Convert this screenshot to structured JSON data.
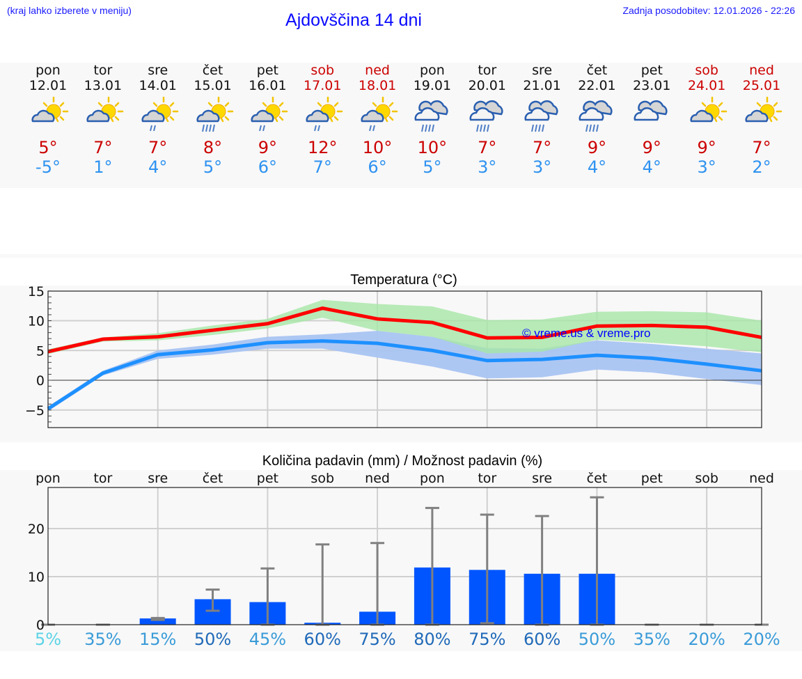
{
  "header": {
    "menu_hint": "(kraj lahko izberete v meniju)",
    "title": "Ajdovščina 14 dni",
    "last_update": "Zadnja posodobitev: 12.01.2026 - 22:26"
  },
  "days": [
    {
      "name": "pon",
      "date": "12.01",
      "weekend": false,
      "icon": "partly-sunny-icon",
      "tmax": "5°",
      "tmin": "-5°"
    },
    {
      "name": "tor",
      "date": "13.01",
      "weekend": false,
      "icon": "partly-sunny-icon",
      "tmax": "7°",
      "tmin": "1°"
    },
    {
      "name": "sre",
      "date": "14.01",
      "weekend": false,
      "icon": "partly-sunny-light-rain-icon",
      "tmax": "7°",
      "tmin": "4°"
    },
    {
      "name": "čet",
      "date": "15.01",
      "weekend": false,
      "icon": "partly-sunny-rain-icon",
      "tmax": "8°",
      "tmin": "5°"
    },
    {
      "name": "pet",
      "date": "16.01",
      "weekend": false,
      "icon": "partly-sunny-light-rain-icon",
      "tmax": "9°",
      "tmin": "6°"
    },
    {
      "name": "sob",
      "date": "17.01",
      "weekend": true,
      "icon": "partly-sunny-light-rain-icon",
      "tmax": "12°",
      "tmin": "7°"
    },
    {
      "name": "ned",
      "date": "18.01",
      "weekend": true,
      "icon": "partly-sunny-light-rain-icon",
      "tmax": "10°",
      "tmin": "6°"
    },
    {
      "name": "pon",
      "date": "19.01",
      "weekend": false,
      "icon": "cloudy-rain-icon",
      "tmax": "10°",
      "tmin": "5°"
    },
    {
      "name": "tor",
      "date": "20.01",
      "weekend": false,
      "icon": "cloudy-rain-icon",
      "tmax": "7°",
      "tmin": "3°"
    },
    {
      "name": "sre",
      "date": "21.01",
      "weekend": false,
      "icon": "cloudy-rain-icon",
      "tmax": "7°",
      "tmin": "3°"
    },
    {
      "name": "čet",
      "date": "22.01",
      "weekend": false,
      "icon": "cloudy-rain-icon",
      "tmax": "9°",
      "tmin": "4°"
    },
    {
      "name": "pet",
      "date": "23.01",
      "weekend": false,
      "icon": "cloudy-icon",
      "tmax": "9°",
      "tmin": "4°"
    },
    {
      "name": "sob",
      "date": "24.01",
      "weekend": true,
      "icon": "partly-sunny-icon",
      "tmax": "9°",
      "tmin": "3°"
    },
    {
      "name": "ned",
      "date": "25.01",
      "weekend": true,
      "icon": "partly-sunny-icon",
      "tmax": "7°",
      "tmin": "2°"
    }
  ],
  "colors": {
    "tmax": "#cc0000",
    "tmin": "#2e92f0",
    "max_line": "#ff0000",
    "min_line": "#1e90ff",
    "max_band": "#a6e6a6",
    "min_band": "#a9c4f2",
    "bar": "#0055ff",
    "errorbar": "#808080",
    "watermark": "#0000ff"
  },
  "chart_data": [
    {
      "type": "line",
      "title": "Temperatura (°C)",
      "xlabel": "",
      "ylabel": "",
      "ylim": [
        -7.8,
        15
      ],
      "yticks": [
        -5,
        0,
        5,
        10,
        15
      ],
      "ytick_labels": [
        "−5",
        "0",
        "5",
        "10",
        "15"
      ],
      "grid": true,
      "watermark": "© vreme.us & vreme.pro",
      "x": [
        "12.01",
        "13.01",
        "14.01",
        "15.01",
        "16.01",
        "17.01",
        "18.01",
        "19.01",
        "20.01",
        "21.01",
        "22.01",
        "23.01",
        "24.01",
        "25.01"
      ],
      "series": [
        {
          "name": "Tmax",
          "values": [
            4.8,
            6.9,
            7.3,
            8.4,
            9.5,
            12.1,
            10.3,
            9.7,
            7.1,
            7.2,
            9.1,
            9.2,
            8.9,
            7.2
          ]
        },
        {
          "name": "Tmin",
          "values": [
            -4.8,
            1.2,
            4.3,
            5.1,
            6.3,
            6.6,
            6.2,
            5.0,
            3.3,
            3.5,
            4.2,
            3.7,
            2.7,
            1.6
          ]
        },
        {
          "name": "Tmax range upper",
          "values": [
            5.2,
            7.2,
            7.9,
            9.2,
            10.3,
            13.5,
            12.8,
            12.4,
            10.1,
            10.2,
            11.5,
            11.6,
            11.4,
            10.0
          ]
        },
        {
          "name": "Tmax range lower",
          "values": [
            4.4,
            6.5,
            6.7,
            7.6,
            8.7,
            10.5,
            8.3,
            7.3,
            4.5,
            4.8,
            6.8,
            6.3,
            5.7,
            4.7
          ]
        },
        {
          "name": "Tmin range upper",
          "values": [
            -4.4,
            1.6,
            5.0,
            6.0,
            7.3,
            7.7,
            8.3,
            7.3,
            5.4,
            5.3,
            6.7,
            6.1,
            5.3,
            4.5
          ]
        },
        {
          "name": "Tmin range lower",
          "values": [
            -5.2,
            0.8,
            3.6,
            4.3,
            5.3,
            5.3,
            3.8,
            2.3,
            0.3,
            0.5,
            1.8,
            1.3,
            0.2,
            -0.8
          ]
        }
      ]
    },
    {
      "type": "bar",
      "title": "Količina padavin (mm) / Možnost padavin (%)",
      "xlabel": "",
      "ylabel": "",
      "ylim": [
        0,
        28.5
      ],
      "yticks": [
        0,
        10,
        20
      ],
      "grid": true,
      "categories": [
        "pon",
        "tor",
        "sre",
        "čet",
        "pet",
        "sob",
        "ned",
        "pon",
        "tor",
        "sre",
        "čet",
        "pet",
        "sob",
        "ned"
      ],
      "series": [
        {
          "name": "Količina padavin (mm)",
          "values": [
            0,
            0,
            1.3,
            5.3,
            4.7,
            0.4,
            2.7,
            11.9,
            11.4,
            10.6,
            10.6,
            0,
            0,
            0
          ]
        },
        {
          "name": "Razpon min (mm)",
          "values": [
            0,
            0,
            1.0,
            2.9,
            0,
            0,
            0,
            0,
            0.3,
            0,
            0,
            0,
            0,
            0
          ]
        },
        {
          "name": "Razpon max (mm)",
          "values": [
            0,
            0,
            1.4,
            7.3,
            11.7,
            16.7,
            17.0,
            24.3,
            22.9,
            22.6,
            26.5,
            0,
            0,
            0
          ]
        }
      ],
      "probability_labels": [
        "5%",
        "35%",
        "15%",
        "50%",
        "45%",
        "60%",
        "75%",
        "80%",
        "75%",
        "60%",
        "50%",
        "35%",
        "20%",
        "20%"
      ],
      "probability_colors": [
        "#5cd3e6",
        "#3a9bd8",
        "#3a9bd8",
        "#1f69b8",
        "#3a9bd8",
        "#1f69b8",
        "#1f69b8",
        "#1f69b8",
        "#1f69b8",
        "#1f69b8",
        "#3a9bd8",
        "#3a9bd8",
        "#3a9bd8",
        "#3a9bd8"
      ]
    }
  ]
}
